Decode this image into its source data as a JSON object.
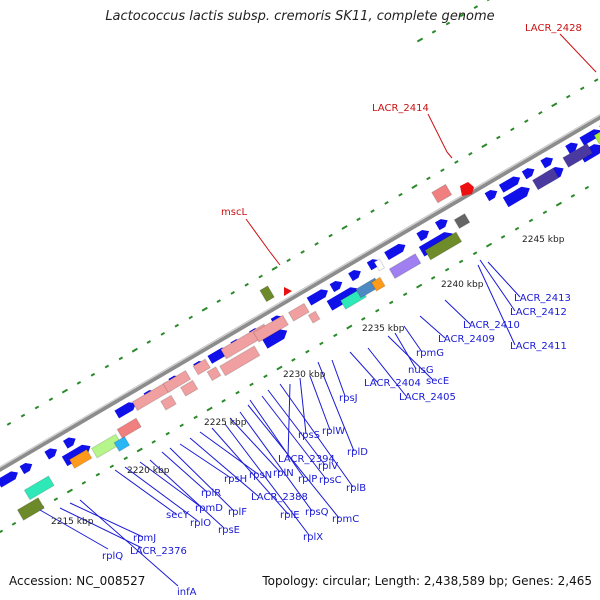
{
  "title": "Lactococcus lactis subsp. cremoris SK11, complete genome",
  "accession": "Accession: NC_008527",
  "topology": "Topology: circular; Length: 2,438,589 bp; Genes: 2,465",
  "colors": {
    "backbone": "#909090",
    "gene": "#1010e8",
    "label_blue": "#1a1ad6",
    "label_red": "#cc1111",
    "tick": "#2a8a2a"
  },
  "kbp_ticks": [
    "2215 kbp",
    "2220 kbp",
    "2225 kbp",
    "2230 kbp",
    "2235 kbp",
    "2240 kbp",
    "2245 kbp"
  ],
  "gene_labels": [
    "rplQ",
    "LACR_2376",
    "rpmJ",
    "infA",
    "secY",
    "rplO",
    "rpmD",
    "rpsE",
    "rplR",
    "rplF",
    "rpsH",
    "LACR_2388",
    "rpsN",
    "rplE",
    "rplX",
    "rplN",
    "rpsQ",
    "rpmC",
    "rplP",
    "rpsC",
    "rplV",
    "rplB",
    "LACR_2394",
    "rpsS",
    "rplW",
    "rplD",
    "rpsJ",
    "LACR_2404",
    "LACR_2405",
    "secE",
    "nusG",
    "rpmG",
    "LACR_2409",
    "LACR_2410",
    "LACR_2411",
    "LACR_2412",
    "LACR_2413"
  ],
  "red_labels": [
    "mscL",
    "LACR_2414",
    "LACR_2428"
  ]
}
